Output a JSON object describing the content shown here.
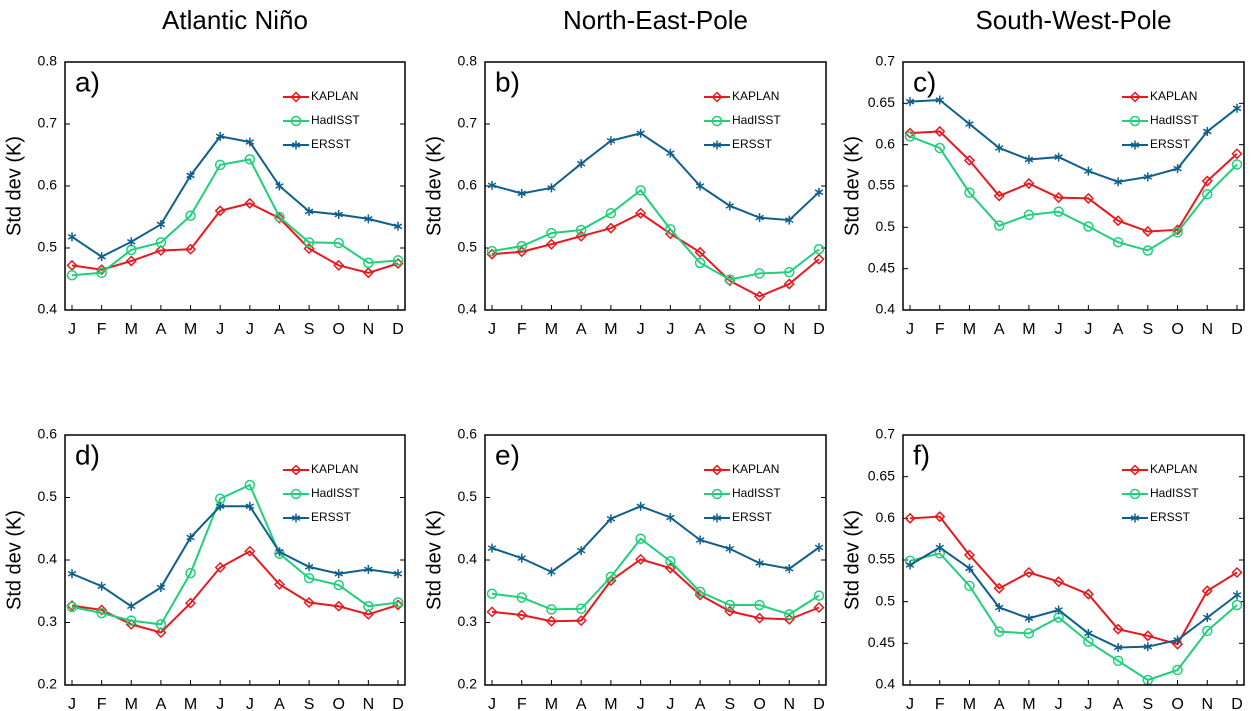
{
  "chart_data": [
    {
      "type": "line",
      "title": "Atlantic Niño",
      "annotation": "a)",
      "y_label": "Std dev (K)",
      "legend": "upper right",
      "categories": [
        "J",
        "F",
        "M",
        "A",
        "M",
        "J",
        "J",
        "A",
        "S",
        "O",
        "N",
        "D"
      ],
      "ylim": [
        0.4,
        0.8
      ],
      "yticks": [
        0.4,
        0.5,
        0.6,
        0.7,
        0.8
      ],
      "series": [
        {
          "name": "KAPLAN",
          "color": "#e8191e",
          "marker": "diamond",
          "values": [
            0.472,
            0.465,
            0.479,
            0.496,
            0.498,
            0.56,
            0.572,
            0.548,
            0.499,
            0.472,
            0.46,
            0.475
          ]
        },
        {
          "name": "HadISST",
          "color": "#1fd07a",
          "marker": "circle",
          "values": [
            0.456,
            0.46,
            0.497,
            0.509,
            0.552,
            0.634,
            0.643,
            0.55,
            0.509,
            0.508,
            0.476,
            0.48
          ]
        },
        {
          "name": "ERSST",
          "color": "#0f5f8c",
          "marker": "asterisk",
          "values": [
            0.518,
            0.486,
            0.51,
            0.538,
            0.617,
            0.68,
            0.671,
            0.6,
            0.559,
            0.554,
            0.547,
            0.535
          ]
        }
      ]
    },
    {
      "type": "line",
      "title": "North-East-Pole",
      "annotation": "b)",
      "y_label": "Std dev (K)",
      "legend": "upper right",
      "categories": [
        "J",
        "F",
        "M",
        "A",
        "M",
        "J",
        "J",
        "A",
        "S",
        "O",
        "N",
        "D"
      ],
      "ylim": [
        0.4,
        0.8
      ],
      "yticks": [
        0.4,
        0.5,
        0.6,
        0.7,
        0.8
      ],
      "series": [
        {
          "name": "KAPLAN",
          "color": "#e8191e",
          "marker": "diamond",
          "values": [
            0.49,
            0.494,
            0.506,
            0.519,
            0.532,
            0.556,
            0.523,
            0.493,
            0.447,
            0.422,
            0.442,
            0.482
          ]
        },
        {
          "name": "HadISST",
          "color": "#1fd07a",
          "marker": "circle",
          "values": [
            0.495,
            0.503,
            0.524,
            0.529,
            0.556,
            0.593,
            0.53,
            0.476,
            0.449,
            0.459,
            0.461,
            0.498
          ]
        },
        {
          "name": "ERSST",
          "color": "#0f5f8c",
          "marker": "asterisk",
          "values": [
            0.601,
            0.588,
            0.597,
            0.636,
            0.673,
            0.685,
            0.653,
            0.6,
            0.568,
            0.549,
            0.545,
            0.59
          ]
        }
      ]
    },
    {
      "type": "line",
      "title": "South-West-Pole",
      "annotation": "c)",
      "y_label": "Std dev (K)",
      "legend": "upper right",
      "categories": [
        "J",
        "F",
        "M",
        "A",
        "M",
        "J",
        "J",
        "A",
        "S",
        "O",
        "N",
        "D"
      ],
      "ylim": [
        0.4,
        0.7
      ],
      "yticks": [
        0.4,
        0.45,
        0.5,
        0.55,
        0.6,
        0.65,
        0.7
      ],
      "series": [
        {
          "name": "KAPLAN",
          "color": "#e8191e",
          "marker": "diamond",
          "values": [
            0.614,
            0.616,
            0.581,
            0.538,
            0.553,
            0.536,
            0.535,
            0.508,
            0.495,
            0.497,
            0.556,
            0.589
          ]
        },
        {
          "name": "HadISST",
          "color": "#1fd07a",
          "marker": "circle",
          "values": [
            0.61,
            0.596,
            0.542,
            0.502,
            0.515,
            0.519,
            0.501,
            0.482,
            0.472,
            0.494,
            0.54,
            0.576
          ]
        },
        {
          "name": "ERSST",
          "color": "#0f5f8c",
          "marker": "asterisk",
          "values": [
            0.652,
            0.654,
            0.625,
            0.596,
            0.582,
            0.585,
            0.568,
            0.555,
            0.561,
            0.571,
            0.616,
            0.644
          ]
        }
      ]
    },
    {
      "type": "line",
      "annotation": "d)",
      "y_label": "Std dev (K)",
      "legend": "upper right",
      "categories": [
        "J",
        "F",
        "M",
        "A",
        "M",
        "J",
        "J",
        "A",
        "S",
        "O",
        "N",
        "D"
      ],
      "ylim": [
        0.2,
        0.6
      ],
      "yticks": [
        0.2,
        0.3,
        0.4,
        0.5,
        0.6
      ],
      "series": [
        {
          "name": "KAPLAN",
          "color": "#e8191e",
          "marker": "diamond",
          "values": [
            0.327,
            0.32,
            0.297,
            0.284,
            0.331,
            0.388,
            0.414,
            0.361,
            0.332,
            0.326,
            0.313,
            0.328
          ]
        },
        {
          "name": "HadISST",
          "color": "#1fd07a",
          "marker": "circle",
          "values": [
            0.325,
            0.315,
            0.303,
            0.297,
            0.379,
            0.498,
            0.52,
            0.41,
            0.371,
            0.36,
            0.326,
            0.332
          ]
        },
        {
          "name": "ERSST",
          "color": "#0f5f8c",
          "marker": "asterisk",
          "values": [
            0.378,
            0.358,
            0.326,
            0.356,
            0.436,
            0.486,
            0.486,
            0.413,
            0.389,
            0.378,
            0.385,
            0.378
          ]
        }
      ]
    },
    {
      "type": "line",
      "annotation": "e)",
      "y_label": "Std dev (K)",
      "legend": "upper right",
      "categories": [
        "J",
        "F",
        "M",
        "A",
        "M",
        "J",
        "J",
        "A",
        "S",
        "O",
        "N",
        "D"
      ],
      "ylim": [
        0.2,
        0.6
      ],
      "yticks": [
        0.2,
        0.3,
        0.4,
        0.5,
        0.6
      ],
      "series": [
        {
          "name": "KAPLAN",
          "color": "#e8191e",
          "marker": "diamond",
          "values": [
            0.317,
            0.312,
            0.302,
            0.303,
            0.367,
            0.401,
            0.387,
            0.344,
            0.318,
            0.307,
            0.305,
            0.324
          ]
        },
        {
          "name": "HadISST",
          "color": "#1fd07a",
          "marker": "circle",
          "values": [
            0.346,
            0.34,
            0.321,
            0.322,
            0.373,
            0.434,
            0.398,
            0.349,
            0.328,
            0.328,
            0.313,
            0.343
          ]
        },
        {
          "name": "ERSST",
          "color": "#0f5f8c",
          "marker": "asterisk",
          "values": [
            0.419,
            0.403,
            0.381,
            0.415,
            0.466,
            0.486,
            0.468,
            0.432,
            0.418,
            0.395,
            0.386,
            0.42
          ]
        }
      ]
    },
    {
      "type": "line",
      "annotation": "f)",
      "y_label": "Std dev (K)",
      "legend": "upper right",
      "categories": [
        "J",
        "F",
        "M",
        "A",
        "M",
        "J",
        "J",
        "A",
        "S",
        "O",
        "N",
        "D"
      ],
      "ylim": [
        0.4,
        0.7
      ],
      "yticks": [
        0.4,
        0.45,
        0.5,
        0.55,
        0.6,
        0.65,
        0.7
      ],
      "series": [
        {
          "name": "KAPLAN",
          "color": "#e8191e",
          "marker": "diamond",
          "values": [
            0.6,
            0.602,
            0.556,
            0.516,
            0.535,
            0.524,
            0.509,
            0.467,
            0.459,
            0.449,
            0.513,
            0.535
          ]
        },
        {
          "name": "HadISST",
          "color": "#1fd07a",
          "marker": "circle",
          "values": [
            0.549,
            0.558,
            0.519,
            0.464,
            0.462,
            0.481,
            0.452,
            0.429,
            0.406,
            0.418,
            0.465,
            0.496
          ]
        },
        {
          "name": "ERSST",
          "color": "#0f5f8c",
          "marker": "asterisk",
          "values": [
            0.544,
            0.565,
            0.54,
            0.493,
            0.48,
            0.49,
            0.462,
            0.445,
            0.446,
            0.454,
            0.481,
            0.508
          ]
        }
      ]
    }
  ]
}
